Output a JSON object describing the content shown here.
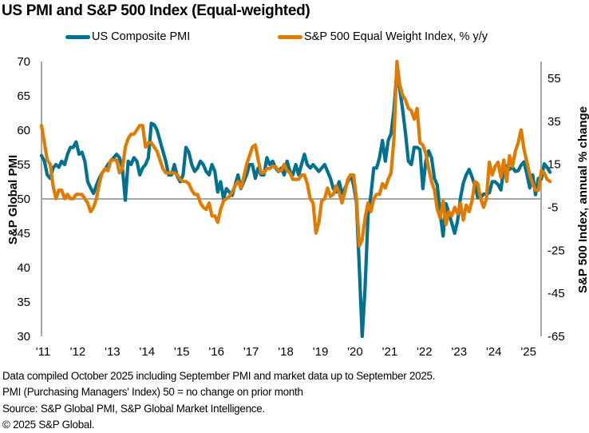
{
  "chart_data": {
    "type": "line",
    "title": "US PMI and S&P 500 Index (Equal-weighted)",
    "legend_position": "top",
    "xlabel": "",
    "x_tick_labels": [
      "'11",
      "'12",
      "'13",
      "'14",
      "'15",
      "'16",
      "'17",
      "'18",
      "'19",
      "'20",
      "'21",
      "'22",
      "'23",
      "'24",
      "'25"
    ],
    "x_start": "2011-01",
    "x_end": "2025-09",
    "frequency": "monthly",
    "y_left": {
      "label": "S&P Global PMI",
      "range": [
        30,
        70
      ],
      "ticks": [
        30,
        35,
        40,
        45,
        50,
        55,
        60,
        65,
        70
      ],
      "reference_line": 50
    },
    "y_right": {
      "label": "S&P 500 Index, annual % change",
      "range": [
        -65,
        62.8
      ],
      "ticks": [
        -65,
        -45,
        -25,
        -5,
        15,
        35,
        55
      ]
    },
    "grid": false,
    "series": [
      {
        "name": "US Composite PMI",
        "axis": "left",
        "color": "#00728F",
        "values": [
          56.3,
          55.5,
          53.5,
          53,
          54.5,
          55,
          54.6,
          55.5,
          55,
          56.5,
          57.5,
          57.5,
          58.3,
          56.5,
          56.8,
          55.5,
          52.5,
          51.6,
          50.8,
          52,
          53,
          53.8,
          54.3,
          55,
          55.5,
          56,
          56.5,
          56,
          54.5,
          49.8,
          55.5,
          55,
          56,
          55.5,
          53.5,
          54.5,
          55,
          56,
          61,
          60.8,
          60,
          58.5,
          57,
          55.5,
          53.5,
          53.5,
          55,
          53.3,
          52.5,
          53.5,
          57.5,
          56.8,
          55,
          54,
          54.5,
          55.5,
          55,
          54,
          53.5,
          55,
          54,
          51,
          52.5,
          50,
          51.5,
          51,
          50.5,
          52,
          53.5,
          51.5,
          52.5,
          53.5,
          55,
          55,
          53,
          54.5,
          53.5,
          53.5,
          56,
          55,
          55.5,
          54.5,
          54,
          54.5,
          53.5,
          55.5,
          54,
          53.5,
          55,
          53.5,
          55,
          56.5,
          55,
          54.5,
          55,
          54.5,
          54,
          54.5,
          55,
          54,
          53,
          51.5,
          51,
          52.5,
          50.8,
          51.5,
          52.5,
          53.5,
          52,
          49.5,
          40,
          30,
          37,
          47.5,
          50.5,
          54.5,
          54.5,
          56,
          58.5,
          55.5,
          58.5,
          59.5,
          63,
          68.7,
          66,
          63,
          59.5,
          55.5,
          55,
          57.5,
          57.5,
          57.2,
          51.5,
          55.5,
          57,
          56,
          53,
          52,
          47.8,
          44.6,
          49.3,
          48,
          46.5,
          45,
          46.8,
          50.1,
          52.3,
          53.5,
          54.3,
          53.2,
          52,
          50.2,
          50.2,
          50.7,
          50.7,
          50.9,
          52.5,
          52.5,
          52.1,
          51.3,
          54.5,
          54.8,
          54.3,
          54.6,
          54,
          54.1,
          54.9,
          55.4,
          53.6,
          51.6,
          53.5,
          50.6,
          53,
          52.9,
          55.1,
          54.6,
          53.9
        ]
      },
      {
        "name": "S&P 500 Equal Weight Index, % y/y",
        "axis": "right",
        "color": "#E07B00",
        "values": [
          33,
          25,
          17,
          15,
          5,
          -1,
          3,
          3,
          -1,
          1,
          -1,
          -1,
          1,
          1,
          1,
          -1,
          -3,
          -7,
          -5,
          -1,
          6,
          11,
          13,
          12,
          17,
          17,
          17,
          11,
          13,
          23,
          27,
          29,
          29,
          31,
          33,
          33,
          23,
          25,
          25,
          23,
          21,
          17,
          13,
          11,
          11,
          11,
          11,
          10,
          8,
          7,
          7,
          6,
          3,
          1,
          1,
          -3,
          -5,
          -6,
          -3,
          -9,
          -9,
          -12,
          -6,
          -2,
          -1,
          0,
          2,
          5,
          7,
          4,
          9,
          15,
          19,
          23,
          24,
          17,
          11,
          11,
          13,
          13,
          14,
          14,
          12,
          12,
          15,
          12,
          11,
          8,
          8,
          8,
          10,
          10,
          6,
          -1,
          -3,
          -17,
          -12,
          -2,
          -1,
          4,
          0,
          1,
          5,
          2,
          -3,
          2,
          8,
          10,
          10,
          -1,
          -23,
          -20,
          -10,
          -3,
          -7,
          -1,
          1,
          1,
          6,
          4,
          8,
          11,
          27,
          65,
          52,
          47,
          45,
          41,
          40,
          36,
          41,
          25,
          24,
          20,
          13,
          7,
          3,
          -6,
          -10,
          -2,
          -13,
          -7,
          -9,
          -5,
          -8,
          -3,
          -11,
          -4,
          -7,
          -2,
          7,
          6,
          -1,
          -5,
          -1,
          16,
          10,
          14,
          16,
          9,
          17,
          7,
          19,
          14,
          21,
          25,
          31,
          22,
          16,
          10,
          6,
          3,
          3,
          12,
          11,
          8,
          7
        ]
      }
    ]
  },
  "notes": [
    "Data compiled October 2025 including September PMI and market data up to September 2025.",
    "PMI (Purchasing Managers' Index) 50 = no change on prior month",
    "Source: S&P Global PMI, S&P Global Market Intelligence.",
    "© 2025 S&P Global."
  ]
}
